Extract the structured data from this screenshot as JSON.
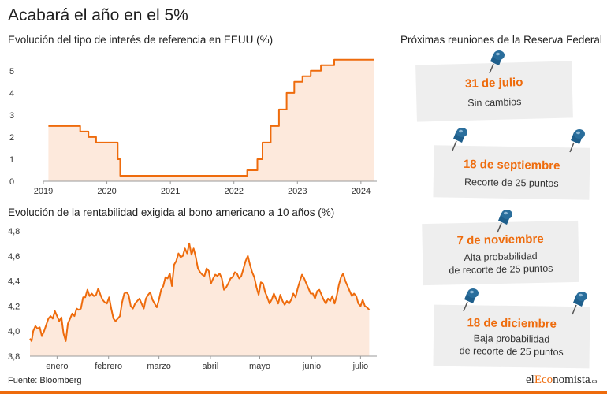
{
  "title": "Acabará el año en el 5%",
  "side_panel": {
    "title": "Próximas reuniones de la Reserva Federal",
    "meetings": [
      {
        "date": "31 de julio",
        "lines": [
          "Sin cambios"
        ]
      },
      {
        "date": "18 de septiembre",
        "lines": [
          "Recorte de 25 puntos"
        ]
      },
      {
        "date": "7 de noviembre",
        "lines": [
          "Alta probabilidad",
          "de recorte de 25 puntos"
        ]
      },
      {
        "date": "18 de diciembre",
        "lines": [
          "Baja probabilidad",
          "de recorte de 25 puntos"
        ]
      }
    ]
  },
  "source": "Fuente: Bloomberg",
  "logo": {
    "prefix": "el",
    "accent": "Eco",
    "main": "nomista",
    "suffix": ".es"
  },
  "colors": {
    "accent": "#ee6b0c",
    "area_fill": "#fde9dc",
    "note_bg": "#eeeeee",
    "pin": "#1f5f8c",
    "axis": "#9a9a9a"
  },
  "chart_data": [
    {
      "type": "area",
      "title": "Evolución del tipo de interés de referencia en EEUU (%)",
      "xlabel": "",
      "ylabel": "",
      "x_ticks": [
        "2019",
        "2020",
        "2021",
        "2022",
        "2023",
        "2024"
      ],
      "xlim": [
        2019,
        2024.25
      ],
      "y_ticks": [
        "0",
        "1",
        "2",
        "3",
        "4",
        "5"
      ],
      "ylim": [
        0,
        5.6
      ],
      "grid": false,
      "step": true,
      "series": [
        {
          "x": [
            2019.08,
            2019.58,
            2019.71,
            2019.83,
            2020.17,
            2020.21,
            2022.21,
            2022.37,
            2022.45,
            2022.58,
            2022.71,
            2022.83,
            2022.95,
            2023.08,
            2023.21,
            2023.37,
            2023.58,
            2024.2
          ],
          "y": [
            2.5,
            2.25,
            2.0,
            1.75,
            1.0,
            0.25,
            0.5,
            1.0,
            1.75,
            2.5,
            3.25,
            4.0,
            4.5,
            4.75,
            5.0,
            5.25,
            5.5,
            5.5
          ]
        }
      ]
    },
    {
      "type": "area",
      "title": "Evolución de la rentabilidad exigida al bono americano a 10 años (%)",
      "xlabel": "",
      "ylabel": "",
      "x_ticks": [
        "enero",
        "febrero",
        "marzo",
        "abril",
        "mayo",
        "junio",
        "julio"
      ],
      "x_tick_positions": [
        0.5,
        1.45,
        2.38,
        3.33,
        4.24,
        5.2,
        6.1
      ],
      "xlim": [
        0,
        6.4
      ],
      "y_ticks": [
        "3,8",
        "4,0",
        "4,2",
        "4,4",
        "4,6",
        "4,8"
      ],
      "ylim": [
        3.8,
        4.8
      ],
      "grid": false,
      "series": [
        {
          "x": [
            0.0,
            0.03,
            0.06,
            0.1,
            0.14,
            0.18,
            0.22,
            0.26,
            0.3,
            0.34,
            0.38,
            0.42,
            0.46,
            0.5,
            0.54,
            0.58,
            0.62,
            0.66,
            0.7,
            0.74,
            0.78,
            0.82,
            0.86,
            0.9,
            0.94,
            0.98,
            1.02,
            1.06,
            1.1,
            1.14,
            1.18,
            1.22,
            1.26,
            1.3,
            1.34,
            1.38,
            1.42,
            1.46,
            1.5,
            1.54,
            1.58,
            1.62,
            1.66,
            1.7,
            1.74,
            1.78,
            1.82,
            1.86,
            1.9,
            1.94,
            1.98,
            2.02,
            2.06,
            2.1,
            2.14,
            2.18,
            2.22,
            2.26,
            2.3,
            2.34,
            2.38,
            2.42,
            2.46,
            2.5,
            2.54,
            2.58,
            2.62,
            2.66,
            2.7,
            2.74,
            2.78,
            2.82,
            2.86,
            2.9,
            2.94,
            2.98,
            3.02,
            3.06,
            3.1,
            3.14,
            3.18,
            3.22,
            3.26,
            3.3,
            3.34,
            3.38,
            3.42,
            3.46,
            3.5,
            3.54,
            3.58,
            3.62,
            3.66,
            3.7,
            3.74,
            3.78,
            3.82,
            3.86,
            3.9,
            3.94,
            3.98,
            4.02,
            4.06,
            4.1,
            4.14,
            4.18,
            4.22,
            4.26,
            4.3,
            4.34,
            4.38,
            4.42,
            4.46,
            4.5,
            4.54,
            4.58,
            4.62,
            4.66,
            4.7,
            4.74,
            4.78,
            4.82,
            4.86,
            4.9,
            4.94,
            4.98,
            5.02,
            5.06,
            5.1,
            5.14,
            5.18,
            5.22,
            5.26,
            5.3,
            5.34,
            5.38,
            5.42,
            5.46,
            5.5,
            5.54,
            5.58,
            5.62,
            5.66,
            5.7,
            5.74,
            5.78,
            5.82,
            5.86,
            5.9,
            5.94,
            5.98,
            6.02,
            6.06,
            6.1,
            6.14,
            6.18,
            6.22,
            6.26
          ],
          "y": [
            3.94,
            3.92,
            4.0,
            4.04,
            4.02,
            4.03,
            3.96,
            4.0,
            4.05,
            4.1,
            4.12,
            4.1,
            4.16,
            4.12,
            4.08,
            4.11,
            3.98,
            3.92,
            4.06,
            4.1,
            4.14,
            4.12,
            4.18,
            4.17,
            4.18,
            4.27,
            4.27,
            4.33,
            4.28,
            4.3,
            4.28,
            4.29,
            4.34,
            4.29,
            4.25,
            4.23,
            4.22,
            4.27,
            4.18,
            4.1,
            4.08,
            4.1,
            4.12,
            4.23,
            4.3,
            4.31,
            4.29,
            4.2,
            4.18,
            4.22,
            4.24,
            4.26,
            4.22,
            4.18,
            4.26,
            4.29,
            4.31,
            4.25,
            4.22,
            4.19,
            4.25,
            4.33,
            4.36,
            4.43,
            4.42,
            4.46,
            4.36,
            4.53,
            4.56,
            4.62,
            4.59,
            4.6,
            4.66,
            4.62,
            4.7,
            4.61,
            4.66,
            4.59,
            4.5,
            4.47,
            4.45,
            4.44,
            4.5,
            4.48,
            4.38,
            4.42,
            4.45,
            4.44,
            4.46,
            4.42,
            4.33,
            4.35,
            4.38,
            4.42,
            4.43,
            4.47,
            4.46,
            4.42,
            4.44,
            4.5,
            4.56,
            4.6,
            4.53,
            4.47,
            4.43,
            4.35,
            4.29,
            4.39,
            4.38,
            4.31,
            4.27,
            4.22,
            4.25,
            4.3,
            4.26,
            4.22,
            4.29,
            4.24,
            4.21,
            4.24,
            4.22,
            4.25,
            4.3,
            4.27,
            4.34,
            4.4,
            4.45,
            4.42,
            4.38,
            4.34,
            4.3,
            4.3,
            4.26,
            4.32,
            4.33,
            4.29,
            4.25,
            4.22,
            4.26,
            4.24,
            4.28,
            4.22,
            4.28,
            4.37,
            4.43,
            4.46,
            4.4,
            4.36,
            4.32,
            4.28,
            4.3,
            4.28,
            4.22,
            4.2,
            4.25,
            4.2,
            4.19,
            4.17
          ]
        }
      ]
    }
  ]
}
